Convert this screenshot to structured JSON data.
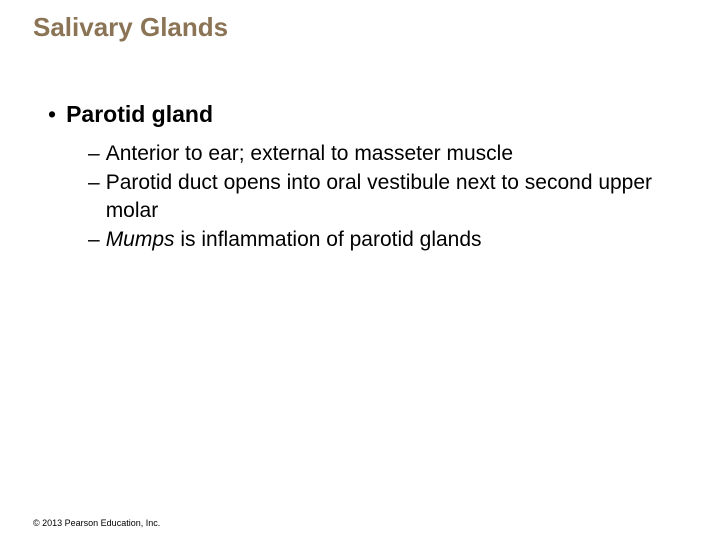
{
  "title": "Salivary Glands",
  "heading": "Parotid gland",
  "sub1": "Anterior to ear; external to masseter muscle",
  "sub2": "Parotid duct opens into oral vestibule next to second upper molar",
  "sub3_italic": "Mumps",
  "sub3_rest": " is inflammation of parotid glands",
  "copyright": "© 2013 Pearson Education, Inc.",
  "colors": {
    "title": "#8b7355",
    "text": "#000000",
    "background": "#ffffff"
  },
  "typography": {
    "title_size": 26,
    "h1_size": 23,
    "body_size": 21,
    "copyright_size": 9,
    "font_family": "Arial"
  }
}
